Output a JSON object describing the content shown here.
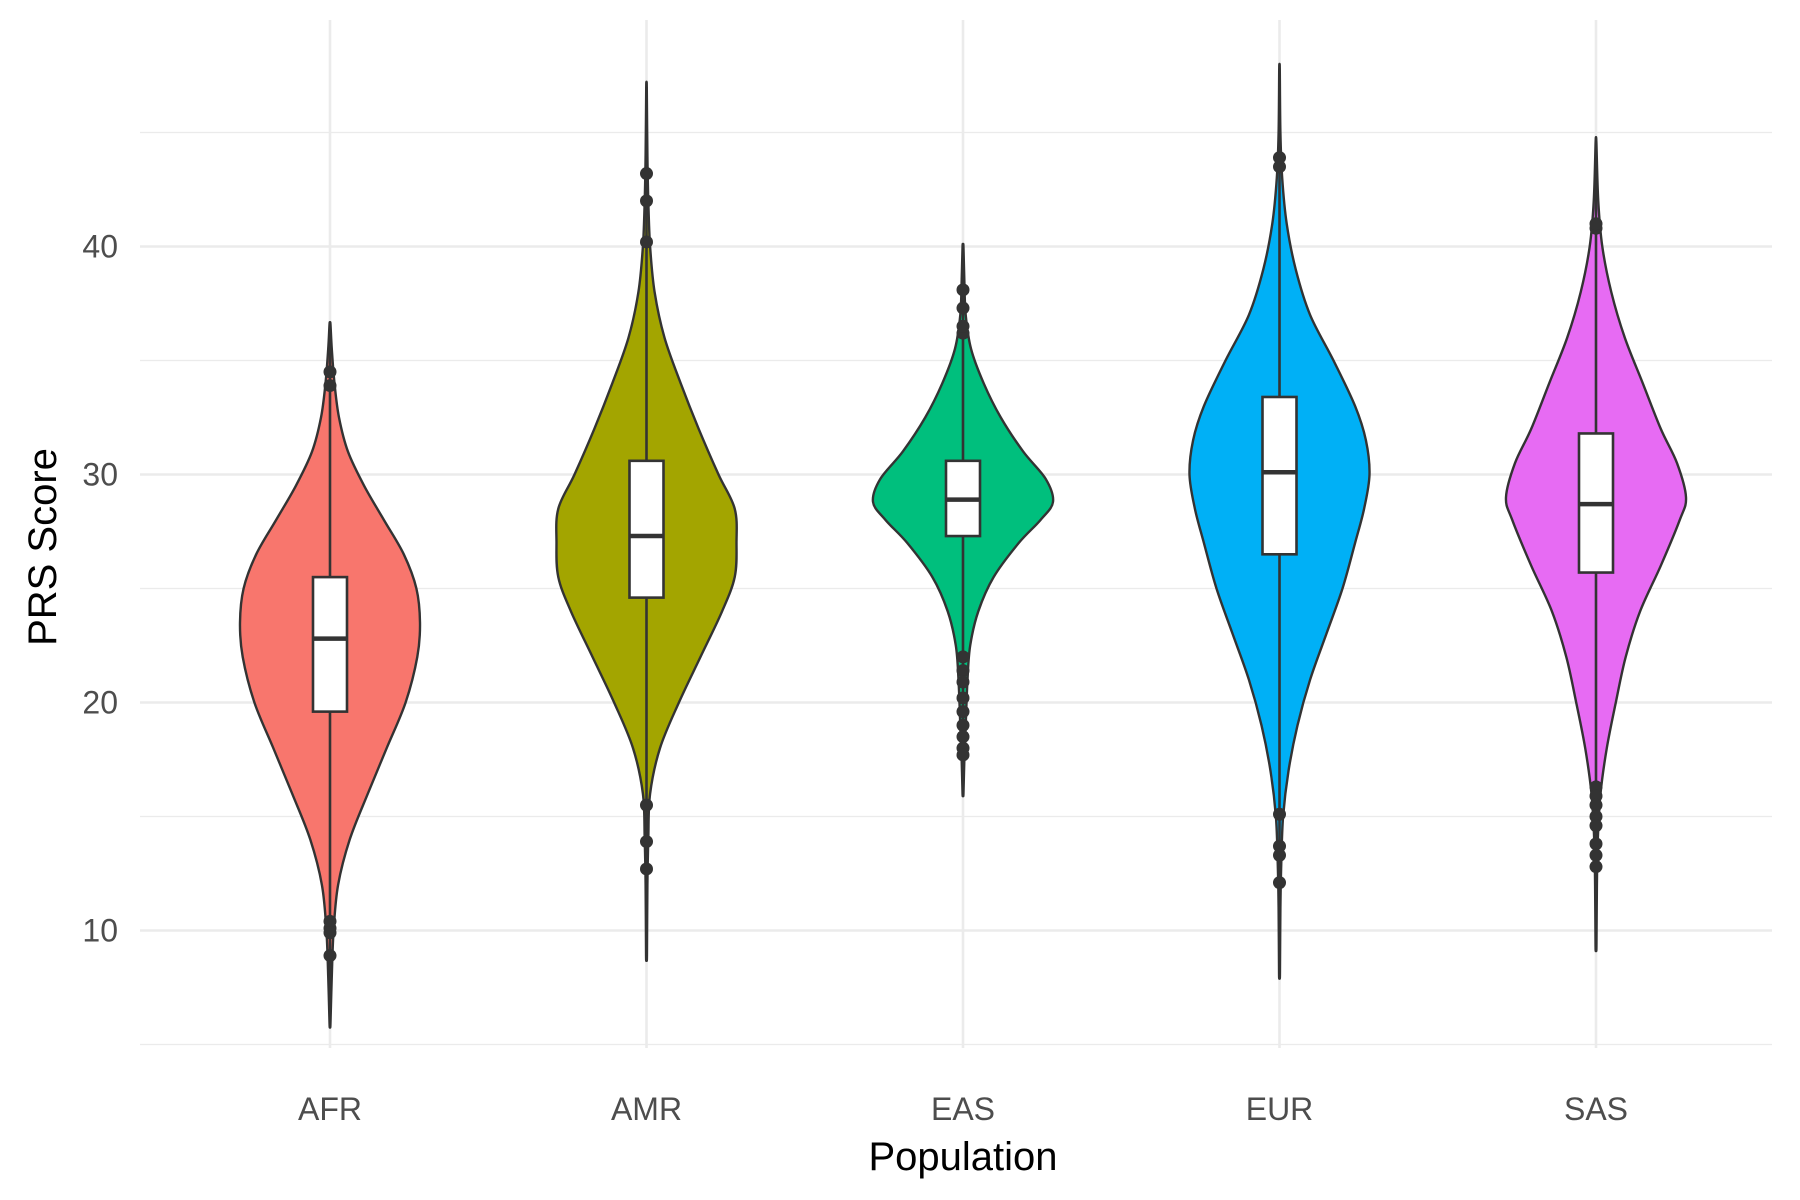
{
  "chart_data": {
    "type": "violin",
    "title": "",
    "xlabel": "Population",
    "ylabel": "PRS Score",
    "categories": [
      "AFR",
      "AMR",
      "EAS",
      "EUR",
      "SAS"
    ],
    "y_ticks": [
      10,
      20,
      30,
      40
    ],
    "ylim": [
      4,
      48
    ],
    "grid": true,
    "legend": "none",
    "series": [
      {
        "category": "AFR",
        "color": "#F8766D",
        "min": 5.9,
        "max": 36.6,
        "box": {
          "q1": 19.6,
          "median": 22.8,
          "q3": 25.5,
          "whisker_low": 11.5,
          "whisker_high": 33.7
        },
        "outliers": [
          10.1,
          10.4,
          9.9,
          8.9,
          33.9,
          34.5
        ],
        "density": [
          [
            5.9,
            0.005
          ],
          [
            8,
            0.02
          ],
          [
            10,
            0.04
          ],
          [
            12,
            0.09
          ],
          [
            14,
            0.22
          ],
          [
            16,
            0.42
          ],
          [
            18,
            0.63
          ],
          [
            20,
            0.84
          ],
          [
            22,
            0.97
          ],
          [
            23.5,
            1.0
          ],
          [
            25,
            0.96
          ],
          [
            26.5,
            0.82
          ],
          [
            28,
            0.6
          ],
          [
            29.5,
            0.38
          ],
          [
            31,
            0.2
          ],
          [
            32.5,
            0.1
          ],
          [
            34,
            0.05
          ],
          [
            35.5,
            0.02
          ],
          [
            36.6,
            0.005
          ]
        ]
      },
      {
        "category": "AMR",
        "color": "#A3A500",
        "min": 8.9,
        "max": 47.0,
        "box": {
          "q1": 24.6,
          "median": 27.3,
          "q3": 30.6,
          "whisker_low": 15.8,
          "whisker_high": 39.5
        },
        "outliers": [
          15.5,
          13.9,
          12.7,
          40.2,
          42.0,
          43.2
        ],
        "density": [
          [
            8.9,
            0.005
          ],
          [
            12,
            0.01
          ],
          [
            14,
            0.02
          ],
          [
            16,
            0.04
          ],
          [
            18,
            0.15
          ],
          [
            20,
            0.36
          ],
          [
            22,
            0.6
          ],
          [
            24,
            0.84
          ],
          [
            25.5,
            0.98
          ],
          [
            27,
            1.0
          ],
          [
            28.5,
            0.98
          ],
          [
            30,
            0.8
          ],
          [
            32,
            0.58
          ],
          [
            34,
            0.38
          ],
          [
            36,
            0.2
          ],
          [
            38,
            0.09
          ],
          [
            40,
            0.04
          ],
          [
            42,
            0.02
          ],
          [
            44,
            0.01
          ],
          [
            47,
            0.003
          ]
        ]
      },
      {
        "category": "EAS",
        "color": "#00BF7D",
        "min": 16.0,
        "max": 40.0,
        "box": {
          "q1": 27.3,
          "median": 28.9,
          "q3": 30.6,
          "whisker_low": 22.2,
          "whisker_high": 35.9
        },
        "outliers": [
          22.0,
          21.4,
          20.9,
          20.2,
          19.6,
          19.0,
          18.5,
          18.0,
          17.7,
          36.2,
          36.5,
          37.3,
          38.1
        ],
        "density": [
          [
            16,
            0.005
          ],
          [
            17.5,
            0.015
          ],
          [
            19,
            0.03
          ],
          [
            21,
            0.05
          ],
          [
            22.5,
            0.08
          ],
          [
            24,
            0.17
          ],
          [
            25.5,
            0.34
          ],
          [
            27,
            0.62
          ],
          [
            28,
            0.86
          ],
          [
            28.8,
            1.0
          ],
          [
            29.8,
            0.92
          ],
          [
            31,
            0.67
          ],
          [
            32.5,
            0.42
          ],
          [
            34,
            0.23
          ],
          [
            35.5,
            0.09
          ],
          [
            37,
            0.03
          ],
          [
            38.5,
            0.015
          ],
          [
            40,
            0.005
          ]
        ]
      },
      {
        "category": "EUR",
        "color": "#00B0F6",
        "min": 8.1,
        "max": 47.8,
        "box": {
          "q1": 26.5,
          "median": 30.1,
          "q3": 33.4,
          "whisker_low": 16.2,
          "whisker_high": 43.3
        },
        "outliers": [
          15.1,
          13.7,
          13.3,
          12.1,
          43.5,
          43.9
        ],
        "density": [
          [
            8.1,
            0.005
          ],
          [
            11,
            0.01
          ],
          [
            13,
            0.02
          ],
          [
            15,
            0.04
          ],
          [
            17,
            0.1
          ],
          [
            19,
            0.2
          ],
          [
            21,
            0.34
          ],
          [
            23,
            0.52
          ],
          [
            25,
            0.7
          ],
          [
            27,
            0.84
          ],
          [
            28.5,
            0.94
          ],
          [
            30,
            1.0
          ],
          [
            31.5,
            0.96
          ],
          [
            33,
            0.84
          ],
          [
            35,
            0.6
          ],
          [
            37,
            0.34
          ],
          [
            39,
            0.18
          ],
          [
            41,
            0.08
          ],
          [
            43,
            0.03
          ],
          [
            45,
            0.01
          ],
          [
            47.8,
            0.003
          ]
        ]
      },
      {
        "category": "SAS",
        "color": "#E76BF3",
        "min": 9.3,
        "max": 44.6,
        "box": {
          "q1": 25.7,
          "median": 28.7,
          "q3": 31.8,
          "whisker_low": 17.2,
          "whisker_high": 40.2
        },
        "outliers": [
          16.3,
          15.9,
          15.5,
          15.0,
          14.6,
          13.8,
          13.3,
          12.8,
          40.8,
          41.0
        ],
        "density": [
          [
            9.3,
            0.005
          ],
          [
            12,
            0.01
          ],
          [
            14,
            0.02
          ],
          [
            16,
            0.05
          ],
          [
            18,
            0.12
          ],
          [
            20,
            0.22
          ],
          [
            22,
            0.33
          ],
          [
            24,
            0.49
          ],
          [
            26,
            0.72
          ],
          [
            28,
            0.93
          ],
          [
            29,
            1.0
          ],
          [
            30.5,
            0.9
          ],
          [
            32,
            0.72
          ],
          [
            34,
            0.52
          ],
          [
            36,
            0.32
          ],
          [
            38,
            0.17
          ],
          [
            40,
            0.07
          ],
          [
            42,
            0.025
          ],
          [
            44.6,
            0.004
          ]
        ]
      }
    ]
  }
}
